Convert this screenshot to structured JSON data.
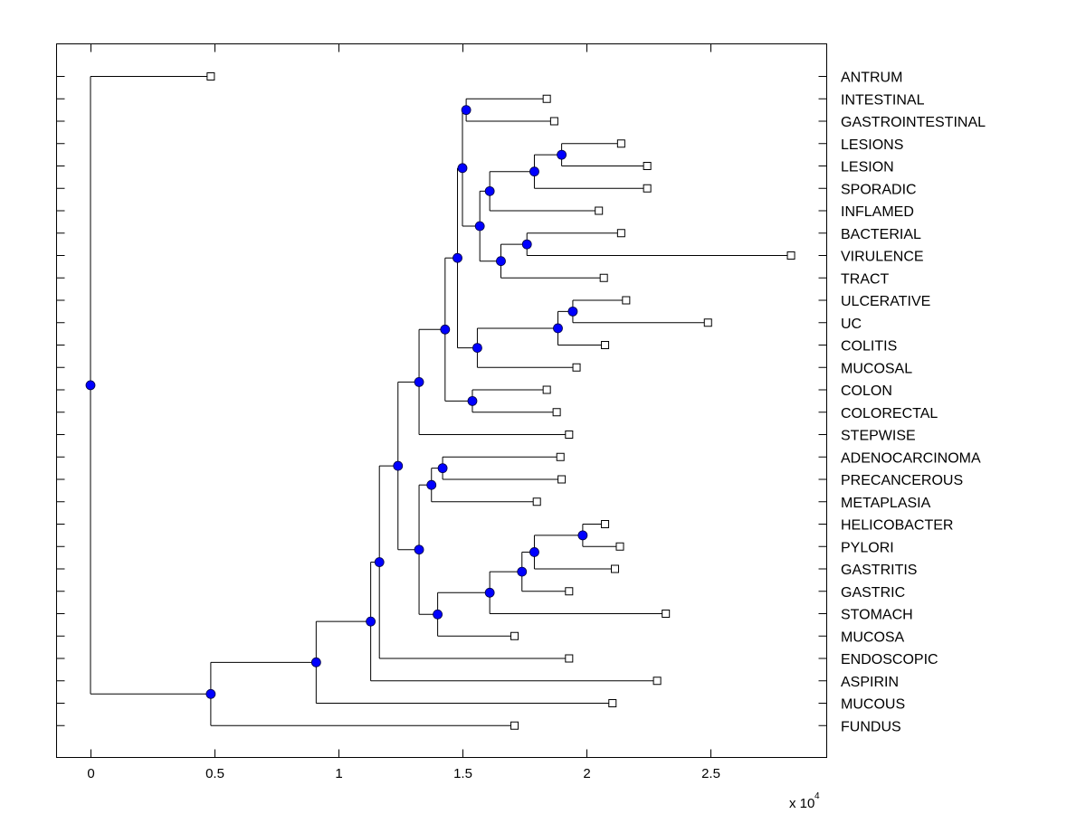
{
  "chart_data": {
    "type": "dendrogram",
    "title": "",
    "xlabel": "",
    "ylabel": "",
    "x_multiplier_label": "x 10",
    "x_multiplier_exponent": "4",
    "xlim": [
      -0.14,
      2.95
    ],
    "xticks": [
      0,
      0.5,
      1,
      1.5,
      2,
      2.5
    ],
    "xtick_labels": [
      "0",
      "0.5",
      "1",
      "1.5",
      "2",
      "2.5"
    ],
    "node_color": "#0000ff",
    "leaves": [
      {
        "id": "ANTRUM",
        "label": "ANTRUM",
        "x": 0.485
      },
      {
        "id": "INTESTINAL",
        "label": "INTESTINAL",
        "x": 1.84
      },
      {
        "id": "GASTROINTESTINAL",
        "label": "GASTROINTESTINAL",
        "x": 1.87
      },
      {
        "id": "LESIONS",
        "label": "LESIONS",
        "x": 2.14
      },
      {
        "id": "LESION",
        "label": "LESION",
        "x": 2.245
      },
      {
        "id": "SPORADIC",
        "label": "SPORADIC",
        "x": 2.245
      },
      {
        "id": "INFLAMED",
        "label": "INFLAMED",
        "x": 2.05
      },
      {
        "id": "BACTERIAL",
        "label": "BACTERIAL",
        "x": 2.14
      },
      {
        "id": "VIRULENCE",
        "label": "VIRULENCE",
        "x": 2.825
      },
      {
        "id": "TRACT",
        "label": "TRACT",
        "x": 2.07
      },
      {
        "id": "ULCERATIVE",
        "label": "ULCERATIVE",
        "x": 2.16
      },
      {
        "id": "UC",
        "label": "UC",
        "x": 2.49
      },
      {
        "id": "COLITIS",
        "label": "COLITIS",
        "x": 2.075
      },
      {
        "id": "MUCOSAL",
        "label": "MUCOSAL",
        "x": 1.96
      },
      {
        "id": "COLON",
        "label": "COLON",
        "x": 1.84
      },
      {
        "id": "COLORECTAL",
        "label": "COLORECTAL",
        "x": 1.88
      },
      {
        "id": "STEPWISE",
        "label": "STEPWISE",
        "x": 1.93
      },
      {
        "id": "ADENOCARCINOMA",
        "label": "ADENOCARCINOMA",
        "x": 1.895
      },
      {
        "id": "PRECANCEROUS",
        "label": "PRECANCEROUS",
        "x": 1.9
      },
      {
        "id": "METAPLASIA",
        "label": "METAPLASIA",
        "x": 1.8
      },
      {
        "id": "HELICOBACTER",
        "label": "HELICOBACTER",
        "x": 2.075
      },
      {
        "id": "PYLORI",
        "label": "PYLORI",
        "x": 2.135
      },
      {
        "id": "GASTRITIS",
        "label": "GASTRITIS",
        "x": 2.115
      },
      {
        "id": "GASTRIC",
        "label": "GASTRIC",
        "x": 1.93
      },
      {
        "id": "STOMACH",
        "label": "STOMACH",
        "x": 2.32
      },
      {
        "id": "MUCOSA",
        "label": "MUCOSA",
        "x": 1.71
      },
      {
        "id": "ENDOSCOPIC",
        "label": "ENDOSCOPIC",
        "x": 1.93
      },
      {
        "id": "ASPIRIN",
        "label": "ASPIRIN",
        "x": 2.285
      },
      {
        "id": "MUCOUS",
        "label": "MUCOUS",
        "x": 2.105
      },
      {
        "id": "FUNDUS",
        "label": "FUNDUS",
        "x": 1.71
      }
    ],
    "internal_nodes": [
      {
        "id": "n_root",
        "x": 0.0,
        "children": [
          "ANTRUM",
          "n1"
        ]
      },
      {
        "id": "n1",
        "x": 0.485,
        "children": [
          "n2",
          "FUNDUS"
        ]
      },
      {
        "id": "n2",
        "x": 0.91,
        "children": [
          "n3",
          "MUCOUS"
        ]
      },
      {
        "id": "n3",
        "x": 1.13,
        "children": [
          "n4",
          "ASPIRIN"
        ]
      },
      {
        "id": "n4",
        "x": 1.165,
        "children": [
          "n5",
          "ENDOSCOPIC"
        ]
      },
      {
        "id": "n5",
        "x": 1.24,
        "children": [
          "n6",
          "n20"
        ]
      },
      {
        "id": "n6",
        "x": 1.325,
        "children": [
          "n7",
          "STEPWISE"
        ]
      },
      {
        "id": "n7",
        "x": 1.43,
        "children": [
          "n8",
          "n19"
        ]
      },
      {
        "id": "n8",
        "x": 1.48,
        "children": [
          "n9",
          "n16"
        ]
      },
      {
        "id": "n9",
        "x": 1.5,
        "children": [
          "n10",
          "n11"
        ]
      },
      {
        "id": "n10",
        "x": 1.515,
        "children": [
          "INTESTINAL",
          "GASTROINTESTINAL"
        ]
      },
      {
        "id": "n11",
        "x": 1.57,
        "children": [
          "n12",
          "n14"
        ]
      },
      {
        "id": "n12",
        "x": 1.61,
        "children": [
          "n13",
          "INFLAMED"
        ]
      },
      {
        "id": "n13",
        "x": 1.79,
        "children": [
          "n13a",
          "SPORADIC"
        ]
      },
      {
        "id": "n13a",
        "x": 1.9,
        "children": [
          "LESIONS",
          "LESION"
        ]
      },
      {
        "id": "n14",
        "x": 1.655,
        "children": [
          "n15",
          "TRACT"
        ]
      },
      {
        "id": "n15",
        "x": 1.76,
        "children": [
          "BACTERIAL",
          "VIRULENCE"
        ]
      },
      {
        "id": "n16",
        "x": 1.56,
        "children": [
          "n17",
          "MUCOSAL"
        ]
      },
      {
        "id": "n17",
        "x": 1.885,
        "children": [
          "n18",
          "COLITIS"
        ]
      },
      {
        "id": "n18",
        "x": 1.945,
        "children": [
          "ULCERATIVE",
          "UC"
        ]
      },
      {
        "id": "n19",
        "x": 1.54,
        "children": [
          "COLON",
          "COLORECTAL"
        ]
      },
      {
        "id": "n20",
        "x": 1.325,
        "children": [
          "n21",
          "n23"
        ]
      },
      {
        "id": "n21",
        "x": 1.375,
        "children": [
          "n22",
          "METAPLASIA"
        ]
      },
      {
        "id": "n22",
        "x": 1.42,
        "children": [
          "ADENOCARCINOMA",
          "PRECANCEROUS"
        ]
      },
      {
        "id": "n23",
        "x": 1.4,
        "children": [
          "n24",
          "MUCOSA"
        ]
      },
      {
        "id": "n24",
        "x": 1.61,
        "children": [
          "n25",
          "STOMACH"
        ]
      },
      {
        "id": "n25",
        "x": 1.74,
        "children": [
          "n26",
          "GASTRIC"
        ]
      },
      {
        "id": "n26",
        "x": 1.79,
        "children": [
          "n27",
          "GASTRITIS"
        ]
      },
      {
        "id": "n27",
        "x": 1.985,
        "children": [
          "HELICOBACTER",
          "PYLORI"
        ]
      }
    ]
  }
}
